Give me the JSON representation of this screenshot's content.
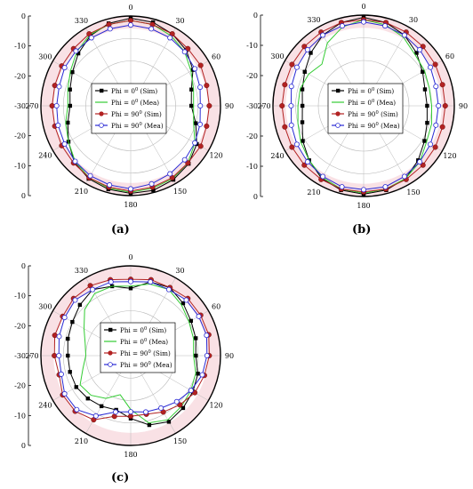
{
  "colors": {
    "sim_phi0": "#000000",
    "mea_phi0": "#33cc33",
    "sim_phi90": "#b22222",
    "mea_phi90": "#2a2ad4",
    "grid": "#b8b8b8",
    "pink_band": "#f4c8cf"
  },
  "chart_data": [
    {
      "type": "polar-line",
      "panel_label": "(a)",
      "theta_ticks": [
        "0",
        "30",
        "60",
        "90",
        "120",
        "150",
        "180",
        "210",
        "240",
        "270",
        "300",
        "330"
      ],
      "r_tick_labels": [
        "0",
        "-10",
        "-20",
        "-30",
        "-20",
        "-10",
        "0"
      ],
      "r_range_db": [
        -40,
        0
      ],
      "legend": [
        "Phi = 0",
        "Phi = 0",
        "Phi = 90",
        "Phi = 90"
      ],
      "legend_suffix": [
        "(Sim)",
        "(Mea)",
        "(Sim)",
        "(Mea)"
      ],
      "legend_sup": "0",
      "angles_deg": [
        0,
        15,
        30,
        45,
        60,
        75,
        90,
        105,
        120,
        135,
        150,
        165,
        180,
        195,
        210,
        225,
        240,
        255,
        270,
        285,
        300,
        315,
        330,
        345
      ],
      "series": [
        {
          "name": "Phi = 0 (Sim)",
          "marker": "square",
          "values": [
            -1,
            -1.5,
            -3,
            -5,
            -8,
            -12,
            -13,
            -10,
            -6,
            -3.5,
            -2,
            -1,
            -1,
            -1.5,
            -2.5,
            -4.5,
            -8,
            -11,
            -13,
            -12,
            -10,
            -7,
            -4,
            -2
          ]
        },
        {
          "name": "Phi = 0 (Mea)",
          "marker": "none",
          "values": [
            -2,
            -2.5,
            -4,
            -6,
            -9,
            -11,
            -12,
            -11,
            -7,
            -4,
            -2.5,
            -2,
            -1.5,
            -2,
            -3,
            -5,
            -8,
            -10,
            -12,
            -11,
            -9,
            -6,
            -3.5,
            -2.5
          ]
        },
        {
          "name": "Phi = 90 (Sim)",
          "marker": "circle",
          "values": [
            -2,
            -2.5,
            -3,
            -4,
            -4,
            -5,
            -5,
            -5,
            -4,
            -4,
            -3,
            -2.5,
            -2,
            -2.5,
            -3,
            -4,
            -4.5,
            -5,
            -5,
            -5,
            -4.5,
            -4,
            -3,
            -2.5
          ]
        },
        {
          "name": "Phi = 90 (Mea)",
          "marker": "hollow-circle",
          "values": [
            -4,
            -4.5,
            -5,
            -6,
            -7,
            -8,
            -9,
            -8,
            -7,
            -6,
            -5,
            -4,
            -3,
            -3.5,
            -4,
            -5,
            -6,
            -6.5,
            -7,
            -7,
            -6,
            -5.5,
            -5,
            -4.5
          ]
        }
      ]
    },
    {
      "type": "polar-line",
      "panel_label": "(b)",
      "theta_ticks": [
        "0",
        "30",
        "60",
        "90",
        "120",
        "150",
        "180",
        "210",
        "240",
        "270",
        "300",
        "330"
      ],
      "r_tick_labels": [
        "0",
        "-10",
        "-20",
        "-30",
        "-20",
        "-10",
        "0"
      ],
      "r_range_db": [
        -40,
        0
      ],
      "legend": [
        "Phi = 0",
        "Phi = 0",
        "Phi = 90",
        "Phi = 90"
      ],
      "legend_suffix": [
        "(Sim)",
        "(Mea)",
        "(Sim)",
        "(Mea)"
      ],
      "legend_sup": "0",
      "angles_deg": [
        0,
        15,
        30,
        45,
        60,
        75,
        90,
        105,
        120,
        135,
        150,
        165,
        180,
        195,
        210,
        225,
        240,
        255,
        270,
        285,
        300,
        315,
        330,
        345
      ],
      "series": [
        {
          "name": "Phi = 0 (Sim)",
          "marker": "square",
          "values": [
            -1,
            -2,
            -4,
            -7,
            -10,
            -12,
            -12,
            -11,
            -9,
            -6,
            -3,
            -1.5,
            -1,
            -1.5,
            -3,
            -6,
            -9,
            -12,
            -13,
            -12,
            -10,
            -7,
            -4,
            -2
          ]
        },
        {
          "name": "Phi = 0 (Mea)",
          "marker": "none",
          "values": [
            -2,
            -3,
            -5,
            -8,
            -9,
            -10,
            -10,
            -9,
            -8,
            -5,
            -3,
            -2,
            -1.5,
            -2,
            -3.5,
            -6,
            -8,
            -10,
            -11,
            -11,
            -12,
            -14,
            -8,
            -4
          ]
        },
        {
          "name": "Phi = 90 (Sim)",
          "marker": "circle",
          "values": [
            -2,
            -2,
            -2.5,
            -3,
            -3.5,
            -4,
            -4,
            -4,
            -3.5,
            -3,
            -2.5,
            -2,
            -2,
            -2,
            -2.5,
            -3,
            -3.5,
            -4,
            -4,
            -4,
            -3.5,
            -3,
            -2.5,
            -2
          ]
        },
        {
          "name": "Phi = 90 (Mea)",
          "marker": "hollow-circle",
          "values": [
            -3,
            -3.5,
            -4,
            -5,
            -6,
            -7,
            -7,
            -7,
            -6,
            -5,
            -4,
            -3,
            -3,
            -3,
            -4,
            -5,
            -6,
            -7,
            -8,
            -7,
            -6,
            -5,
            -4,
            -3.5
          ]
        }
      ]
    },
    {
      "type": "polar-line",
      "panel_label": "(c)",
      "theta_ticks": [
        "0",
        "30",
        "60",
        "90",
        "120",
        "150",
        "180",
        "210",
        "240",
        "270",
        "300",
        "330"
      ],
      "r_tick_labels": [
        "0",
        "-10",
        "-20",
        "-30",
        "-20",
        "-10",
        "0"
      ],
      "r_range_db": [
        -40,
        0
      ],
      "legend": [
        "Phi = 0",
        "Phi = 0",
        "Phi = 90",
        "Phi = 90"
      ],
      "legend_suffix": [
        "(Sim)",
        "(Mea)",
        "(Sim)",
        "(Mea)"
      ],
      "legend_sup": "0",
      "angles_deg": [
        0,
        15,
        30,
        45,
        60,
        75,
        90,
        105,
        120,
        135,
        150,
        165,
        180,
        195,
        210,
        225,
        240,
        255,
        270,
        285,
        300,
        315,
        330,
        345
      ],
      "series": [
        {
          "name": "Phi = 0 (Sim)",
          "marker": "square",
          "values": [
            -10,
            -6,
            -5,
            -7,
            -9,
            -10,
            -11,
            -9,
            -8,
            -7,
            -6,
            -8,
            -12,
            -15,
            -14,
            -13,
            -12,
            -12,
            -12,
            -11,
            -10,
            -8,
            -6,
            -8
          ]
        },
        {
          "name": "Phi = 0 (Mea)",
          "marker": "none",
          "values": [
            -9,
            -7,
            -6,
            -8,
            -10,
            -11,
            -12,
            -10,
            -9,
            -8,
            -7,
            -9,
            -16,
            -22,
            -18,
            -15,
            -14,
            -18,
            -20,
            -19,
            -16,
            -11,
            -8,
            -8
          ]
        },
        {
          "name": "Phi = 90 (Sim)",
          "marker": "circle",
          "values": [
            -6,
            -5,
            -5,
            -4,
            -4,
            -4,
            -5,
            -6,
            -7,
            -9,
            -11,
            -13,
            -13,
            -12,
            -7,
            -5,
            -5,
            -7,
            -6,
            -5,
            -5,
            -4,
            -4,
            -5
          ]
        },
        {
          "name": "Phi = 90 (Mea)",
          "marker": "hollow-circle",
          "values": [
            -7,
            -6,
            -6,
            -5,
            -5,
            -5,
            -6,
            -7,
            -9,
            -11,
            -13,
            -14,
            -15,
            -14,
            -9,
            -6,
            -6,
            -8,
            -8,
            -7,
            -6,
            -5,
            -6,
            -6
          ]
        }
      ]
    }
  ]
}
